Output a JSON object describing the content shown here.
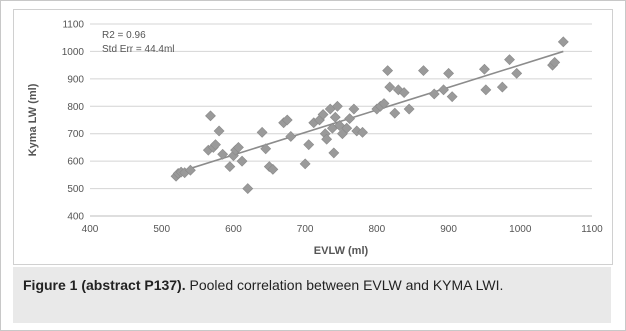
{
  "chart_data": {
    "type": "scatter",
    "title": "",
    "xlabel": "EVLW (ml)",
    "ylabel": "Kyma LW (ml)",
    "xlim": [
      400,
      1100
    ],
    "ylim": [
      400,
      1100
    ],
    "xticks": [
      400,
      500,
      600,
      700,
      800,
      900,
      1000,
      1100
    ],
    "yticks": [
      400,
      500,
      600,
      700,
      800,
      900,
      1000,
      1100
    ],
    "grid": true,
    "annotations": [
      "R2 = 0.96",
      "Std Err = 44.4ml"
    ],
    "trendline": {
      "x": [
        520,
        1060
      ],
      "y": [
        557,
        1000
      ]
    },
    "colors": {
      "points": "#9a9a9a",
      "trendline": "#8c8c8c",
      "grid": "#d4d4d4"
    },
    "series": [
      {
        "x": [
          520,
          523,
          527,
          532,
          540,
          565,
          568,
          572,
          575,
          580,
          585,
          595,
          600,
          603,
          607,
          612,
          620,
          640,
          645,
          650,
          655,
          670,
          675,
          680,
          700,
          705,
          712,
          720,
          725,
          728,
          730,
          735,
          738,
          740,
          742,
          745,
          748,
          752,
          758,
          762,
          768,
          772,
          780,
          800,
          805,
          810,
          815,
          818,
          825,
          830,
          838,
          845,
          865,
          880,
          893,
          900,
          905,
          950,
          952,
          975,
          985,
          995,
          1045,
          1048,
          1060
        ],
        "y": [
          545,
          555,
          560,
          558,
          567,
          640,
          765,
          650,
          660,
          710,
          625,
          580,
          620,
          640,
          650,
          600,
          500,
          705,
          645,
          580,
          570,
          740,
          750,
          690,
          590,
          660,
          740,
          750,
          770,
          700,
          680,
          790,
          720,
          630,
          760,
          800,
          730,
          700,
          720,
          755,
          790,
          710,
          705,
          790,
          800,
          810,
          930,
          870,
          775,
          860,
          850,
          790,
          930,
          845,
          860,
          920,
          835,
          935,
          860,
          870,
          970,
          920,
          950,
          960,
          1035
        ]
      }
    ]
  },
  "caption": {
    "label": "Figure 1 (abstract P137).",
    "text": " Pooled correlation between EVLW and KYMA LWI."
  }
}
